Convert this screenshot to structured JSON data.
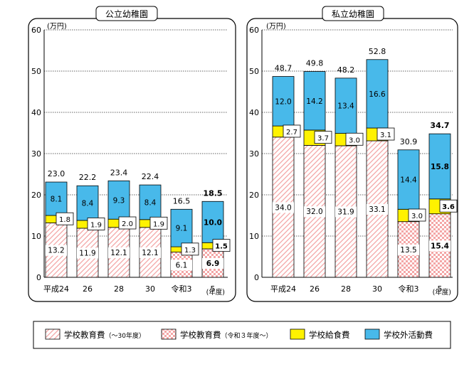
{
  "chart_data": [
    {
      "type": "bar",
      "stacked": true,
      "title": "公立幼稚園",
      "unit_label": "(万円)",
      "x_unit_label": "(年度)",
      "categories": [
        "平成24",
        "26",
        "28",
        "30",
        "令和3",
        "5"
      ],
      "ylim": [
        0,
        60
      ],
      "yticks": [
        0,
        10,
        20,
        30,
        40,
        50,
        60
      ],
      "grid": true,
      "series": [
        {
          "name": "学校教育費（～30年度）",
          "values": [
            13.2,
            11.9,
            12.1,
            12.1,
            null,
            null
          ]
        },
        {
          "name": "学校教育費（令和３年度～）",
          "values": [
            null,
            null,
            null,
            null,
            6.1,
            6.9
          ]
        },
        {
          "name": "学校給食費",
          "values": [
            1.8,
            1.9,
            2.0,
            1.9,
            1.3,
            1.5
          ]
        },
        {
          "name": "学校外活動費",
          "values": [
            8.1,
            8.4,
            9.3,
            8.4,
            9.1,
            10.0
          ]
        }
      ],
      "totals": [
        23.0,
        22.2,
        23.4,
        22.4,
        16.5,
        18.5
      ],
      "bold_latest": true
    },
    {
      "type": "bar",
      "stacked": true,
      "title": "私立幼稚園",
      "unit_label": "(万円)",
      "x_unit_label": "(年度)",
      "categories": [
        "平成24",
        "26",
        "28",
        "30",
        "令和3",
        "5"
      ],
      "ylim": [
        0,
        60
      ],
      "yticks": [
        0,
        10,
        20,
        30,
        40,
        50,
        60
      ],
      "grid": true,
      "series": [
        {
          "name": "学校教育費（～30年度）",
          "values": [
            34.0,
            32.0,
            31.9,
            33.1,
            null,
            null
          ]
        },
        {
          "name": "学校教育費（令和３年度～）",
          "values": [
            null,
            null,
            null,
            null,
            13.5,
            15.4
          ]
        },
        {
          "name": "学校給食費",
          "values": [
            2.7,
            3.7,
            3.0,
            3.1,
            3.0,
            3.6
          ]
        },
        {
          "name": "学校外活動費",
          "values": [
            12.0,
            14.2,
            13.4,
            16.6,
            14.4,
            15.8
          ]
        }
      ],
      "totals": [
        48.7,
        49.8,
        48.2,
        52.8,
        30.9,
        34.7
      ],
      "bold_latest": true
    }
  ],
  "legend": {
    "items": [
      {
        "label": "学校教育費",
        "sub": "（～30年度）",
        "swatch": "diag"
      },
      {
        "label": "学校教育費",
        "sub": "（令和３年度～）",
        "swatch": "check"
      },
      {
        "label": "学校給食費",
        "sub": "",
        "swatch": "yellow"
      },
      {
        "label": "学校外活動費",
        "sub": "",
        "swatch": "blue"
      }
    ]
  },
  "colors": {
    "blue": "#48b9ea",
    "yellow": "#fff200",
    "pink_pattern": "#f4a6a6",
    "grid": "#333333",
    "frame": "#000000"
  }
}
